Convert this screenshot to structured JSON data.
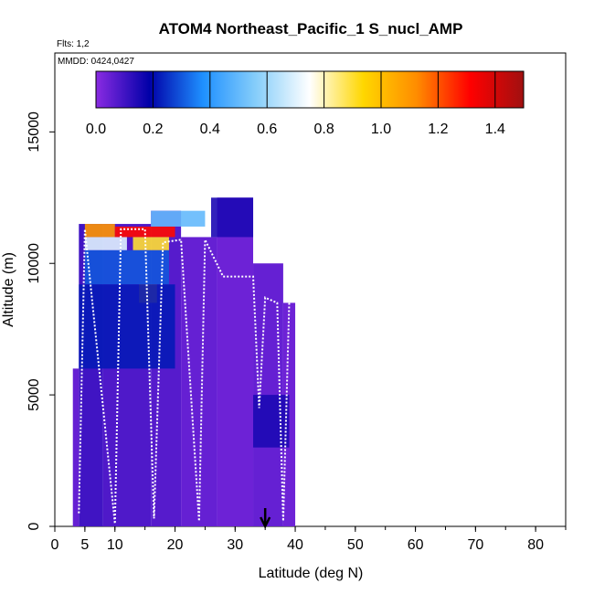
{
  "chart_data": {
    "type": "heatmap",
    "title": "ATOM4 Northeast_Pacific_1 S_nucl_AMP",
    "annotations": [
      "Flts: 1,2",
      "MMDD: 0424,0427"
    ],
    "xlabel": "Latitude (deg N)",
    "ylabel": "Altitude (m)",
    "xlim": [
      0,
      85
    ],
    "ylim": [
      0,
      18000
    ],
    "x_ticks": [
      0,
      5,
      10,
      20,
      30,
      40,
      50,
      60,
      70,
      80
    ],
    "y_ticks": [
      0,
      5000,
      10000,
      15000
    ],
    "colorbar": {
      "range": [
        0,
        1.5
      ],
      "ticks": [
        "0.0",
        "0.2",
        "0.4",
        "0.6",
        "0.8",
        "1.0",
        "1.2",
        "1.4"
      ],
      "colors": [
        "#8a2be2",
        "#0000a8",
        "#1e90ff",
        "#87cefa",
        "#ffffff",
        "#ffd700",
        "#ff8c00",
        "#ff0000",
        "#a01010"
      ],
      "placement": "top inside plot"
    },
    "marker": {
      "type": "arrow",
      "x": 35,
      "direction": "down"
    },
    "heatmap": {
      "cell_width_deg": 1,
      "cell_height_m": 250,
      "columns": [
        {
          "lat_range": [
            3,
            4
          ],
          "alt_range": [
            0,
            6000
          ],
          "value": 0.05
        },
        {
          "lat_range": [
            4,
            8
          ],
          "alt_range": [
            0,
            11500
          ],
          "value": 0.1
        },
        {
          "lat_range": [
            8,
            16
          ],
          "alt_range": [
            0,
            11500
          ],
          "value": 0.08
        },
        {
          "lat_range": [
            16,
            21
          ],
          "alt_range": [
            0,
            12000
          ],
          "value": 0.07
        },
        {
          "lat_range": [
            21,
            27
          ],
          "alt_range": [
            0,
            11000
          ],
          "value": 0.05
        },
        {
          "lat_range": [
            27,
            33
          ],
          "alt_range": [
            0,
            12500
          ],
          "value": 0.04
        },
        {
          "lat_range": [
            33,
            38
          ],
          "alt_range": [
            0,
            10000
          ],
          "value": 0.05
        },
        {
          "lat_range": [
            38,
            40
          ],
          "alt_range": [
            0,
            8500
          ],
          "value": 0.04
        }
      ],
      "highlights": [
        {
          "lat_range": [
            5,
            10
          ],
          "alt_range": [
            11000,
            11500
          ],
          "value": 1.1
        },
        {
          "lat_range": [
            10,
            20
          ],
          "alt_range": [
            11000,
            11400
          ],
          "value": 1.3
        },
        {
          "lat_range": [
            16,
            25
          ],
          "alt_range": [
            11400,
            12000
          ],
          "value": 0.5
        },
        {
          "lat_range": [
            5,
            12
          ],
          "alt_range": [
            10500,
            11000
          ],
          "value": 0.7
        },
        {
          "lat_range": [
            13,
            19
          ],
          "alt_range": [
            10500,
            11000
          ],
          "value": 0.9
        },
        {
          "lat_range": [
            14,
            17
          ],
          "alt_range": [
            8500,
            9200
          ],
          "value": 1.0
        },
        {
          "lat_range": [
            5,
            19
          ],
          "alt_range": [
            9200,
            10500
          ],
          "value": 0.3
        },
        {
          "lat_range": [
            4,
            20
          ],
          "alt_range": [
            6000,
            9200
          ],
          "value": 0.22
        },
        {
          "lat_range": [
            26,
            33
          ],
          "alt_range": [
            11000,
            12500
          ],
          "value": 0.15
        },
        {
          "lat_range": [
            33,
            39
          ],
          "alt_range": [
            3000,
            5000
          ],
          "value": 0.15
        }
      ]
    },
    "flight_track": [
      [
        4,
        500
      ],
      [
        5,
        11300
      ],
      [
        10,
        100
      ],
      [
        11,
        11300
      ],
      [
        15,
        11300
      ],
      [
        16.5,
        300
      ],
      [
        18,
        10800
      ],
      [
        21,
        10900
      ],
      [
        24,
        200
      ],
      [
        25,
        10900
      ],
      [
        28,
        9500
      ],
      [
        33,
        9500
      ],
      [
        34,
        4500
      ],
      [
        35,
        8700
      ],
      [
        37,
        8500
      ],
      [
        38,
        200
      ],
      [
        39,
        8500
      ]
    ]
  }
}
